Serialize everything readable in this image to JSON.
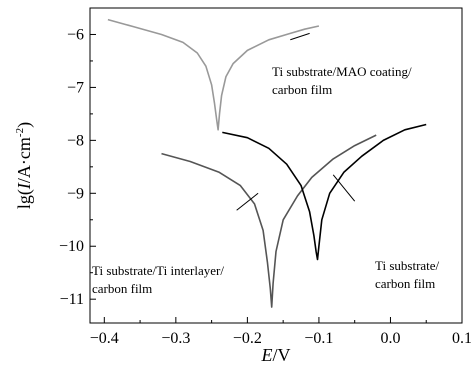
{
  "chart_data": {
    "type": "line",
    "title": "",
    "xlabel": "E/V",
    "ylabel": "lg(I/A·cm⁻²)",
    "xlim": [
      -0.42,
      0.1
    ],
    "ylim": [
      -11.45,
      -5.5
    ],
    "xticks": [
      -0.4,
      -0.3,
      -0.2,
      -0.1,
      0.0,
      0.1
    ],
    "xtick_labels": [
      "−0.4",
      "−0.3",
      "−0.2",
      "−0.1",
      "0.0",
      "0.1"
    ],
    "yticks": [
      -11,
      -10,
      -9,
      -8,
      -7,
      -6
    ],
    "ytick_labels": [
      "−11",
      "−10",
      "−9",
      "−8",
      "−7",
      "−6"
    ],
    "grid": false,
    "legend": "none",
    "series": [
      {
        "label_lines": [
          "Ti substrate/MAO coating/",
          "carbon film"
        ],
        "color": "#999999",
        "x": [
          -0.395,
          -0.36,
          -0.32,
          -0.29,
          -0.27,
          -0.258,
          -0.25,
          -0.246,
          -0.243,
          -0.241,
          -0.239,
          -0.236,
          -0.23,
          -0.22,
          -0.2,
          -0.17,
          -0.14,
          -0.12,
          -0.1
        ],
        "y": [
          -5.72,
          -5.85,
          -6.0,
          -6.15,
          -6.35,
          -6.6,
          -6.95,
          -7.3,
          -7.6,
          -7.8,
          -7.5,
          -7.15,
          -6.8,
          -6.55,
          -6.3,
          -6.1,
          -5.98,
          -5.9,
          -5.84
        ]
      },
      {
        "label_lines": [
          "Ti substrate/Ti interlayer/",
          "carbon film"
        ],
        "color": "#555555",
        "x": [
          -0.32,
          -0.28,
          -0.24,
          -0.21,
          -0.19,
          -0.178,
          -0.172,
          -0.168,
          -0.166,
          -0.164,
          -0.16,
          -0.15,
          -0.13,
          -0.11,
          -0.08,
          -0.05,
          -0.02
        ],
        "y": [
          -8.25,
          -8.4,
          -8.6,
          -8.85,
          -9.2,
          -9.7,
          -10.3,
          -10.8,
          -11.15,
          -10.7,
          -10.1,
          -9.5,
          -9.05,
          -8.7,
          -8.35,
          -8.1,
          -7.9
        ]
      },
      {
        "label_lines": [
          "Ti substrate/",
          "carbon film"
        ],
        "color": "#000000",
        "x": [
          -0.235,
          -0.2,
          -0.17,
          -0.145,
          -0.125,
          -0.113,
          -0.107,
          -0.104,
          -0.102,
          -0.1,
          -0.096,
          -0.085,
          -0.065,
          -0.04,
          -0.01,
          0.02,
          0.05
        ],
        "y": [
          -7.85,
          -7.95,
          -8.15,
          -8.45,
          -8.85,
          -9.35,
          -9.8,
          -10.1,
          -10.25,
          -10.0,
          -9.5,
          -9.0,
          -8.6,
          -8.3,
          -8.0,
          -7.8,
          -7.7
        ]
      }
    ],
    "annotations": [
      {
        "lines": [
          "Ti substrate/MAO coating/",
          "carbon film"
        ],
        "arrow_from": [
          -0.14,
          -6.1
        ],
        "arrow_to": [
          -0.113,
          -5.98
        ]
      },
      {
        "lines": [
          "Ti substrate/Ti interlayer/",
          "carbon film"
        ],
        "arrow_from": [
          -0.215,
          -9.32
        ],
        "arrow_to": [
          -0.185,
          -9.0
        ]
      },
      {
        "lines": [
          "Ti substrate/",
          "carbon film"
        ],
        "arrow_from": [
          -0.05,
          -9.15
        ],
        "arrow_to": [
          -0.08,
          -8.65
        ]
      }
    ]
  }
}
